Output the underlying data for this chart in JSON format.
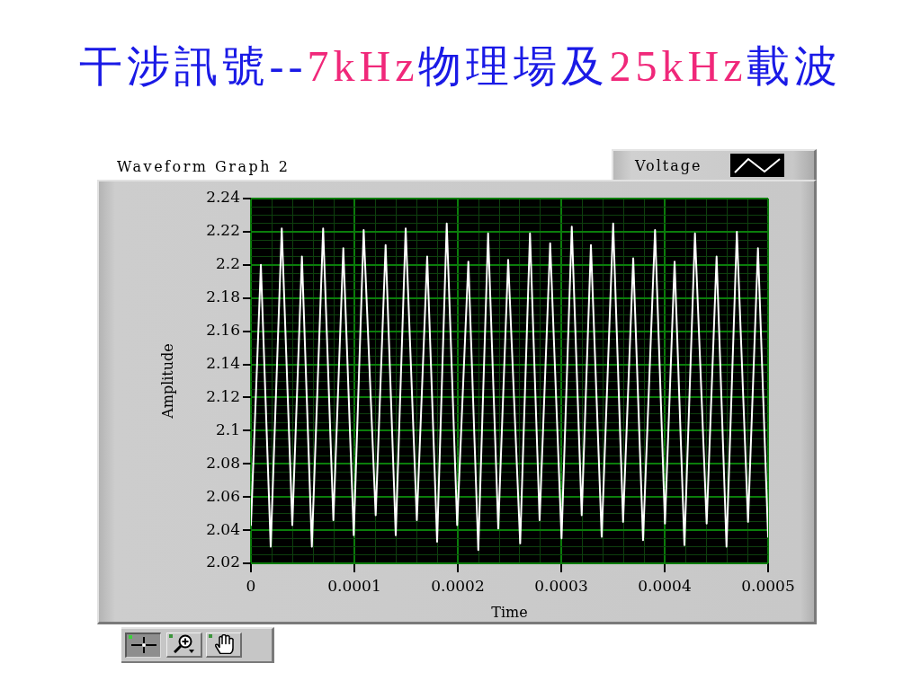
{
  "chart_data": {
    "type": "line",
    "title": "干涉訊號--7kHz物理場及25kHz載波",
    "subtitle": "Waveform Graph 2",
    "xlabel": "Time",
    "ylabel": "Amplitude",
    "x": [
      0,
      9.6e-06,
      1.91e-05,
      2.98e-05,
      4e-05,
      4.93e-05,
      5.89e-05,
      6.98e-05,
      7.97e-05,
      8.93e-05,
      9.94e-05,
      0.000109,
      0.0001206,
      0.0001302,
      0.00014,
      0.0001496,
      0.0001604,
      0.0001704,
      0.00018,
      0.0001893,
      0.0001994,
      0.0002102,
      0.0002198,
      0.0002293,
      0.0002391,
      0.0002487,
      0.0002603,
      0.0002698,
      0.0002791,
      0.0002893,
      0.0003003,
      0.0003102,
      0.0003198,
      0.0003287,
      0.0003391,
      0.0003502,
      0.0003598,
      0.0003696,
      0.0003791,
      0.0003907,
      0.0004003,
      0.0004096,
      0.0004191,
      0.0004293,
      0.0004406,
      0.0004502,
      0.0004598,
      0.0004698,
      0.0004806,
      0.0004902,
      0.0005
    ],
    "series": [
      {
        "name": "Voltage",
        "color": "#ffffff",
        "values": [
          2.043,
          2.2,
          2.03,
          2.222,
          2.043,
          2.205,
          2.03,
          2.222,
          2.046,
          2.21,
          2.037,
          2.221,
          2.049,
          2.212,
          2.037,
          2.222,
          2.046,
          2.205,
          2.033,
          2.225,
          2.043,
          2.202,
          2.028,
          2.219,
          2.041,
          2.203,
          2.032,
          2.219,
          2.046,
          2.213,
          2.035,
          2.223,
          2.049,
          2.212,
          2.036,
          2.225,
          2.045,
          2.204,
          2.034,
          2.221,
          2.044,
          2.202,
          2.031,
          2.219,
          2.044,
          2.205,
          2.03,
          2.22,
          2.045,
          2.21,
          2.036
        ]
      }
    ],
    "xlim": [
      0,
      0.0005
    ],
    "xticks": [
      0,
      {
        "value": 2e-05,
        "label": null
      },
      {
        "value": 4e-05,
        "label": null
      },
      {
        "value": 6e-05,
        "label": null
      },
      {
        "value": 8e-05,
        "label": null
      },
      0.0001,
      {
        "value": 0.00012,
        "label": null
      },
      {
        "value": 0.00014,
        "label": null
      },
      {
        "value": 0.00016,
        "label": null
      },
      {
        "value": 0.00018,
        "label": null
      },
      0.0002,
      {
        "value": 0.00022,
        "label": null
      },
      {
        "value": 0.00024,
        "label": null
      },
      {
        "value": 0.00026,
        "label": null
      },
      {
        "value": 0.00028,
        "label": null
      },
      0.0003,
      {
        "value": 0.00032,
        "label": null
      },
      {
        "value": 0.00034,
        "label": null
      },
      {
        "value": 0.00036,
        "label": null
      },
      {
        "value": 0.00038,
        "label": null
      },
      0.0004,
      {
        "value": 0.00042,
        "label": null
      },
      {
        "value": 0.00044,
        "label": null
      },
      {
        "value": 0.00046,
        "label": null
      },
      {
        "value": 0.00048,
        "label": null
      },
      0.0005
    ],
    "ylim": [
      2.02,
      2.24
    ],
    "yticks": [
      2.02,
      {
        "value": 2.025,
        "label": null
      },
      {
        "value": 2.03,
        "label": null
      },
      {
        "value": 2.035,
        "label": null
      },
      2.04,
      {
        "value": 2.045,
        "label": null
      },
      {
        "value": 2.05,
        "label": null
      },
      {
        "value": 2.055,
        "label": null
      },
      2.06,
      {
        "value": 2.065,
        "label": null
      },
      {
        "value": 2.07,
        "label": null
      },
      {
        "value": 2.075,
        "label": null
      },
      2.08,
      {
        "value": 2.085,
        "label": null
      },
      {
        "value": 2.09,
        "label": null
      },
      {
        "value": 2.095,
        "label": null
      },
      2.1,
      {
        "value": 2.105,
        "label": null
      },
      {
        "value": 2.11,
        "label": null
      },
      {
        "value": 2.115,
        "label": null
      },
      2.12,
      {
        "value": 2.125,
        "label": null
      },
      {
        "value": 2.13,
        "label": null
      },
      {
        "value": 2.135,
        "label": null
      },
      2.14,
      {
        "value": 2.145,
        "label": null
      },
      {
        "value": 2.15,
        "label": null
      },
      {
        "value": 2.155,
        "label": null
      },
      2.16,
      {
        "value": 2.165,
        "label": null
      },
      {
        "value": 2.17,
        "label": null
      },
      {
        "value": 2.175,
        "label": null
      },
      2.18,
      {
        "value": 2.185,
        "label": null
      },
      {
        "value": 2.19,
        "label": null
      },
      {
        "value": 2.195,
        "label": null
      },
      2.2,
      {
        "value": 2.205,
        "label": null
      },
      {
        "value": 2.21,
        "label": null
      },
      {
        "value": 2.215,
        "label": null
      },
      2.22,
      {
        "value": 2.225,
        "label": null
      },
      {
        "value": 2.23,
        "label": null
      },
      {
        "value": 2.235,
        "label": null
      },
      2.24
    ],
    "grid": true,
    "legend": "top right"
  }
}
